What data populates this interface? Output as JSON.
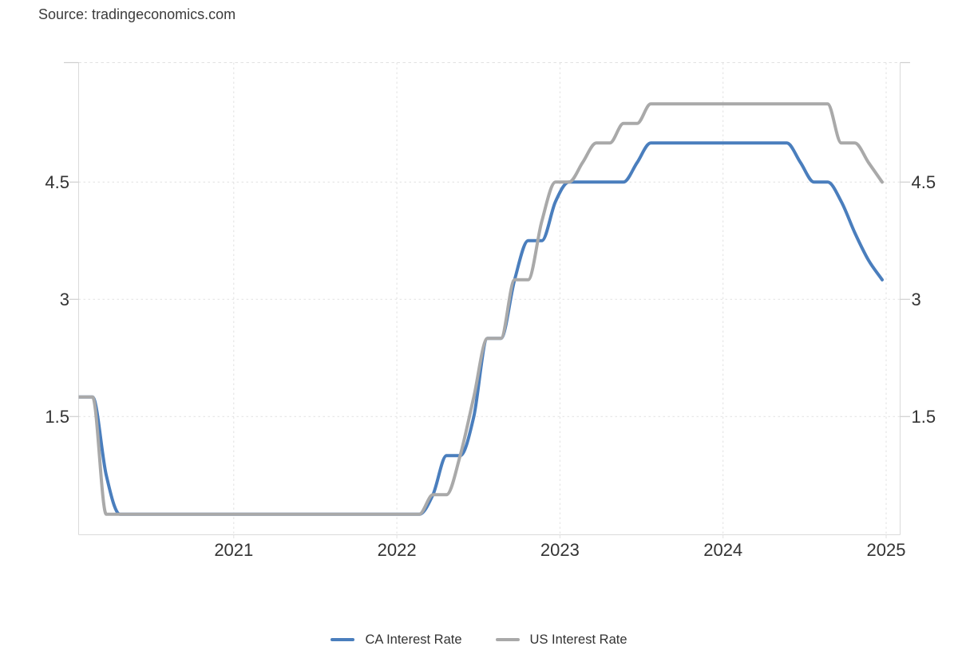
{
  "source": {
    "label": "Source: tradingeconomics.com"
  },
  "legend": [
    {
      "label": "CA Interest Rate",
      "color": "#4a7ebd"
    },
    {
      "label": "US Interest Rate",
      "color": "#a9a9a9"
    }
  ],
  "colors": {
    "ca_line": "#4a7ebd",
    "us_line": "#a9a9a9",
    "grid": "#e1e1e1",
    "axis": "#dadada",
    "tick": "#cfcfcf",
    "axis_label": "#333333",
    "background": "#ffffff"
  },
  "chart_data": {
    "type": "line",
    "title": "",
    "xlabel": "",
    "ylabel": "",
    "grid": "dotted",
    "legend_position": "bottom-center",
    "xlim": [
      2020.0,
      2025.03
    ],
    "ylim": [
      0,
      6.05
    ],
    "y_ticks": [
      {
        "value": 6.0,
        "label": ""
      },
      {
        "value": 4.5,
        "label": "4.5"
      },
      {
        "value": 3,
        "label": "3"
      },
      {
        "value": 1.5,
        "label": "1.5"
      }
    ],
    "x_ticks": [
      {
        "year": 2021,
        "label": "2021"
      },
      {
        "year": 2022,
        "label": "2022"
      },
      {
        "year": 2023,
        "label": "2023"
      },
      {
        "year": 2024,
        "label": "2024"
      },
      {
        "year": 2025,
        "label": "2025"
      }
    ],
    "series": [
      {
        "name": "CA Interest Rate",
        "color": "#4a7ebd",
        "start_year": 2020,
        "start_month": 1,
        "frequency": "monthly",
        "monthly_values": [
          1.75,
          1.75,
          0.75,
          0.25,
          0.25,
          0.25,
          0.25,
          0.25,
          0.25,
          0.25,
          0.25,
          0.25,
          0.25,
          0.25,
          0.25,
          0.25,
          0.25,
          0.25,
          0.25,
          0.25,
          0.25,
          0.25,
          0.25,
          0.25,
          0.25,
          0.25,
          0.5,
          1.0,
          1.0,
          1.5,
          2.5,
          2.5,
          3.25,
          3.75,
          3.75,
          4.25,
          4.5,
          4.5,
          4.5,
          4.5,
          4.5,
          4.75,
          5.0,
          5.0,
          5.0,
          5.0,
          5.0,
          5.0,
          5.0,
          5.0,
          5.0,
          5.0,
          5.0,
          4.75,
          4.5,
          4.5,
          4.25,
          3.85,
          3.5,
          3.25
        ]
      },
      {
        "name": "US Interest Rate",
        "color": "#a9a9a9",
        "start_year": 2020,
        "start_month": 1,
        "frequency": "monthly",
        "monthly_values": [
          1.75,
          1.75,
          0.25,
          0.25,
          0.25,
          0.25,
          0.25,
          0.25,
          0.25,
          0.25,
          0.25,
          0.25,
          0.25,
          0.25,
          0.25,
          0.25,
          0.25,
          0.25,
          0.25,
          0.25,
          0.25,
          0.25,
          0.25,
          0.25,
          0.25,
          0.25,
          0.5,
          0.5,
          1.0,
          1.75,
          2.5,
          2.5,
          3.25,
          3.25,
          4.0,
          4.5,
          4.5,
          4.75,
          5.0,
          5.0,
          5.25,
          5.25,
          5.5,
          5.5,
          5.5,
          5.5,
          5.5,
          5.5,
          5.5,
          5.5,
          5.5,
          5.5,
          5.5,
          5.5,
          5.5,
          5.5,
          5.0,
          5.0,
          4.75,
          4.5
        ]
      }
    ]
  }
}
